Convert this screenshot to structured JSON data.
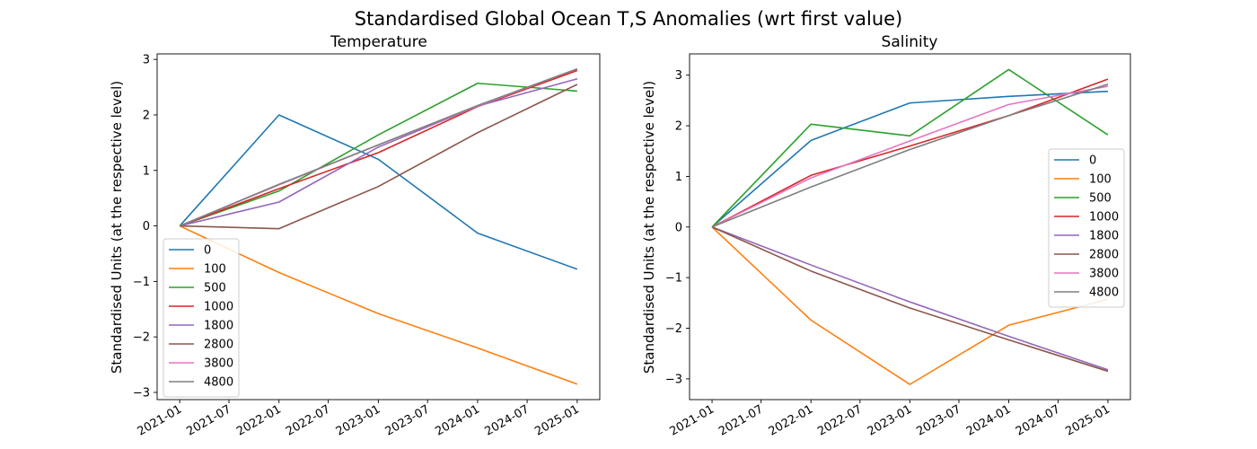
{
  "suptitle": "Standardised Global Ocean T,S Anomalies (wrt first value)",
  "colors": {
    "0": "#1f77b4",
    "100": "#ff7f0e",
    "500": "#2ca02c",
    "1000": "#d62728",
    "1800": "#9467bd",
    "2800": "#8c564b",
    "3800": "#e377c2",
    "4800": "#7f7f7f"
  },
  "chart_data": [
    {
      "type": "line",
      "title": "Temperature",
      "ylabel": "Standardised Units (at the respective level)",
      "x": [
        "2021-01-01",
        "2022-01-01",
        "2023-01-01",
        "2024-01-01",
        "2025-01-01"
      ],
      "xticks": [
        "2021-01",
        "2021-07",
        "2022-01",
        "2022-07",
        "2023-01",
        "2023-07",
        "2024-01",
        "2024-07",
        "2025-01"
      ],
      "xlim": [
        "2020-10-10",
        "2025-03-25"
      ],
      "yticks": [
        -3,
        -2,
        -1,
        0,
        1,
        2,
        3
      ],
      "ytick_labels": [
        "−3",
        "−2",
        "−1",
        "0",
        "1",
        "2",
        "3"
      ],
      "ylim": [
        -3.13,
        3.1
      ],
      "legend_position": "lower-left",
      "series": [
        {
          "name": "0",
          "values": [
            0,
            2.0,
            1.2,
            -0.13,
            -0.78
          ]
        },
        {
          "name": "100",
          "values": [
            0,
            -0.84,
            -1.58,
            -2.2,
            -2.85
          ]
        },
        {
          "name": "500",
          "values": [
            0,
            0.63,
            1.64,
            2.57,
            2.43
          ]
        },
        {
          "name": "1000",
          "values": [
            0,
            0.67,
            1.32,
            2.15,
            2.8
          ]
        },
        {
          "name": "1800",
          "values": [
            0,
            0.43,
            1.42,
            2.16,
            2.65
          ]
        },
        {
          "name": "2800",
          "values": [
            0,
            -0.05,
            0.71,
            1.68,
            2.55
          ]
        },
        {
          "name": "3800",
          "values": [
            0,
            0.74,
            1.46,
            2.16,
            2.83
          ]
        },
        {
          "name": "4800",
          "values": [
            0,
            0.75,
            1.46,
            2.17,
            2.83
          ]
        }
      ]
    },
    {
      "type": "line",
      "title": "Salinity",
      "ylabel": "Standardised Units (at the respective level)",
      "x": [
        "2021-01-01",
        "2022-01-01",
        "2023-01-01",
        "2024-01-01",
        "2025-01-01"
      ],
      "xticks": [
        "2021-01",
        "2021-07",
        "2022-01",
        "2022-07",
        "2023-01",
        "2023-07",
        "2024-01",
        "2024-07",
        "2025-01"
      ],
      "xlim": [
        "2020-10-10",
        "2025-03-25"
      ],
      "yticks": [
        -3,
        -2,
        -1,
        0,
        1,
        2,
        3
      ],
      "ytick_labels": [
        "−3",
        "−2",
        "−1",
        "0",
        "1",
        "2",
        "3"
      ],
      "ylim": [
        -3.41,
        3.42
      ],
      "legend_position": "center-right",
      "series": [
        {
          "name": "0",
          "values": [
            0,
            1.71,
            2.45,
            2.58,
            2.68
          ]
        },
        {
          "name": "100",
          "values": [
            0,
            -1.84,
            -3.11,
            -1.94,
            -1.43
          ]
        },
        {
          "name": "500",
          "values": [
            0,
            2.03,
            1.8,
            3.11,
            1.82
          ]
        },
        {
          "name": "1000",
          "values": [
            0,
            1.02,
            1.6,
            2.2,
            2.92
          ]
        },
        {
          "name": "1800",
          "values": [
            0,
            -0.75,
            -1.48,
            -2.16,
            -2.82
          ]
        },
        {
          "name": "2800",
          "values": [
            0,
            -0.87,
            -1.6,
            -2.23,
            -2.85
          ]
        },
        {
          "name": "3800",
          "values": [
            0,
            0.97,
            1.7,
            2.42,
            2.78
          ]
        },
        {
          "name": "4800",
          "values": [
            0,
            0.79,
            1.53,
            2.2,
            2.82
          ]
        }
      ]
    }
  ]
}
